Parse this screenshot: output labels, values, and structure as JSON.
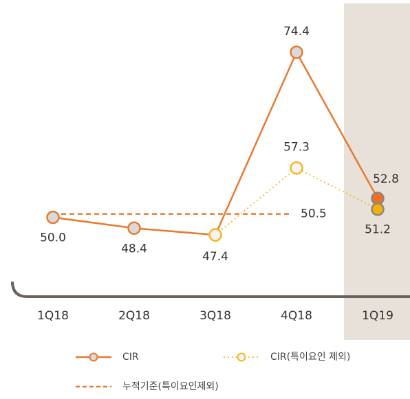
{
  "chart_data": {
    "type": "line",
    "categories": [
      "1Q18",
      "2Q18",
      "3Q18",
      "4Q18",
      "1Q19"
    ],
    "series": [
      {
        "name": "CIR",
        "color": "#e8792f",
        "values": [
          50.0,
          48.4,
          47.4,
          74.4,
          52.8
        ],
        "value_labels": [
          "50.0",
          "48.4",
          "47.4",
          "74.4",
          "52.8"
        ]
      },
      {
        "name": "CIR(특이요인 제외)",
        "color": "#f5b820",
        "values": [
          null,
          null,
          47.4,
          57.3,
          51.2
        ],
        "value_labels": [
          null,
          null,
          null,
          "57.3",
          "51.2"
        ]
      }
    ],
    "reference_line": {
      "name": "누적기준(특이요인제외)",
      "value": 50.5,
      "color": "#e8792f"
    },
    "ylim": [
      40,
      80
    ]
  }
}
